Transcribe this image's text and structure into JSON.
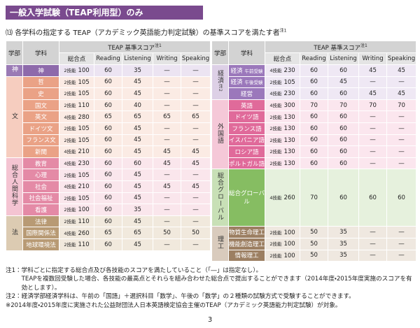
{
  "header": {
    "title": "一般入学試験（TEAP利用型）のみ"
  },
  "subtitle": {
    "number": "⒀",
    "text": "各学科の指定する TEAP（アカデミック英語能力判定試験）の基準スコアを満たす者",
    "note": "注1"
  },
  "table": {
    "columns": {
      "faculty": "学部",
      "dept": "学科",
      "score": "TEAP 基準スコア",
      "score_note": "注1",
      "total": "総合点",
      "reading": "Reading",
      "listening": "Listening",
      "writing": "Writing",
      "speaking": "Speaking"
    },
    "left": [
      {
        "faculty": "神",
        "rows": [
          {
            "dept": "神",
            "skills": "2技能",
            "total": 100,
            "scores": [
              60,
              35,
              "—",
              "—"
            ]
          }
        ]
      },
      {
        "faculty": "文",
        "rows": [
          {
            "dept": "哲",
            "skills": "2技能",
            "total": 105,
            "scores": [
              60,
              45,
              "—",
              "—"
            ]
          },
          {
            "dept": "史",
            "skills": "2技能",
            "total": 105,
            "scores": [
              60,
              45,
              "—",
              "—"
            ]
          },
          {
            "dept": "国文",
            "skills": "2技能",
            "total": 110,
            "scores": [
              60,
              40,
              "—",
              "—"
            ]
          },
          {
            "dept": "英文",
            "skills": "4技能",
            "total": 280,
            "scores": [
              65,
              65,
              65,
              65
            ]
          },
          {
            "dept": "ドイツ文",
            "skills": "2技能",
            "total": 105,
            "scores": [
              60,
              45,
              "—",
              "—"
            ]
          },
          {
            "dept": "フランス文",
            "skills": "2技能",
            "total": 105,
            "scores": [
              60,
              45,
              "—",
              "—"
            ]
          },
          {
            "dept": "新聞",
            "skills": "4技能",
            "total": 210,
            "scores": [
              60,
              45,
              45,
              45
            ]
          }
        ]
      },
      {
        "faculty": "総合人間科学",
        "rows": [
          {
            "dept": "教育",
            "skills": "4技能",
            "total": 230,
            "scores": [
              60,
              60,
              45,
              45
            ]
          },
          {
            "dept": "心理",
            "skills": "2技能",
            "total": 105,
            "scores": [
              60,
              45,
              "—",
              "—"
            ]
          },
          {
            "dept": "社会",
            "skills": "4技能",
            "total": 210,
            "scores": [
              60,
              45,
              45,
              45
            ]
          },
          {
            "dept": "社会福祉",
            "skills": "2技能",
            "total": 105,
            "scores": [
              60,
              45,
              "—",
              "—"
            ]
          },
          {
            "dept": "看護",
            "skills": "2技能",
            "total": 100,
            "scores": [
              60,
              35,
              "—",
              "—"
            ]
          }
        ]
      },
      {
        "faculty": "法",
        "rows": [
          {
            "dept": "法律",
            "skills": "2技能",
            "total": 110,
            "scores": [
              60,
              45,
              "—",
              "—"
            ]
          },
          {
            "dept": "国際関係法",
            "skills": "4技能",
            "total": 260,
            "scores": [
              65,
              65,
              50,
              50
            ]
          },
          {
            "dept": "地球環境法",
            "skills": "2技能",
            "total": 110,
            "scores": [
              60,
              45,
              "—",
              "—"
            ]
          }
        ]
      }
    ],
    "right": [
      {
        "faculty": "経済",
        "faculty_note": "注2",
        "rows": [
          {
            "dept": "経済",
            "dept_note": "午前受験",
            "skills": "4技能",
            "total": 230,
            "scores": [
              60,
              60,
              45,
              45
            ]
          },
          {
            "dept": "経済",
            "dept_note": "午後受験",
            "skills": "2技能",
            "total": 105,
            "scores": [
              60,
              45,
              "—",
              "—"
            ]
          },
          {
            "dept": "経営",
            "skills": "4技能",
            "total": 230,
            "scores": [
              60,
              60,
              45,
              45
            ]
          }
        ]
      },
      {
        "faculty": "外国語",
        "rows": [
          {
            "dept": "英語",
            "skills": "4技能",
            "total": 300,
            "scores": [
              70,
              70,
              70,
              70
            ]
          },
          {
            "dept": "ドイツ語",
            "skills": "2技能",
            "total": 130,
            "scores": [
              60,
              60,
              "—",
              "—"
            ]
          },
          {
            "dept": "フランス語",
            "skills": "2技能",
            "total": 130,
            "scores": [
              60,
              60,
              "—",
              "—"
            ]
          },
          {
            "dept": "イスパニア語",
            "skills": "2技能",
            "total": 130,
            "scores": [
              60,
              60,
              "—",
              "—"
            ]
          },
          {
            "dept": "ロシア語",
            "skills": "2技能",
            "total": 130,
            "scores": [
              60,
              60,
              "—",
              "—"
            ]
          },
          {
            "dept": "ポルトガル語",
            "skills": "2技能",
            "total": 130,
            "scores": [
              60,
              60,
              "—",
              "—"
            ]
          }
        ]
      },
      {
        "faculty": "総合グローバル",
        "rows": [
          {
            "dept": "総合グローバル",
            "skills": "4技能",
            "total": 260,
            "scores": [
              70,
              60,
              60,
              60
            ]
          }
        ]
      },
      {
        "faculty": "理工",
        "rows": [
          {
            "dept": "物質生命理工",
            "skills": "2技能",
            "total": 100,
            "scores": [
              50,
              35,
              "—",
              "—"
            ]
          },
          {
            "dept": "機能創造理工",
            "skills": "2技能",
            "total": 100,
            "scores": [
              50,
              35,
              "—",
              "—"
            ]
          },
          {
            "dept": "情報理工",
            "skills": "2技能",
            "total": 100,
            "scores": [
              50,
              35,
              "—",
              "—"
            ]
          }
        ]
      }
    ]
  },
  "notes": [
    {
      "label": "注1：",
      "lines": [
        "学科ごとに指定する総合点及び各技能のスコアを満たしていること（「―」は指定なし）。",
        "TEAPを複数回受験した場合、各技能の最高点とそれらを組み合わせた総合点で提出することができます（2014年度・2015年度実施のスコアを有効とします）。"
      ]
    },
    {
      "label": "注2：",
      "lines": [
        "経済学部経済学科は、午前の「国語」＋選択科目「数学」、午後の「数学」の２種類の試験方式で受験することができます。"
      ]
    },
    {
      "label": "※",
      "lines": [
        "2014年度・2015年度に実施された公益財団法人日本英語検定協会主催のTEAP（アカデミック英語能力判定試験）が対象。"
      ]
    }
  ],
  "page_number": "3"
}
